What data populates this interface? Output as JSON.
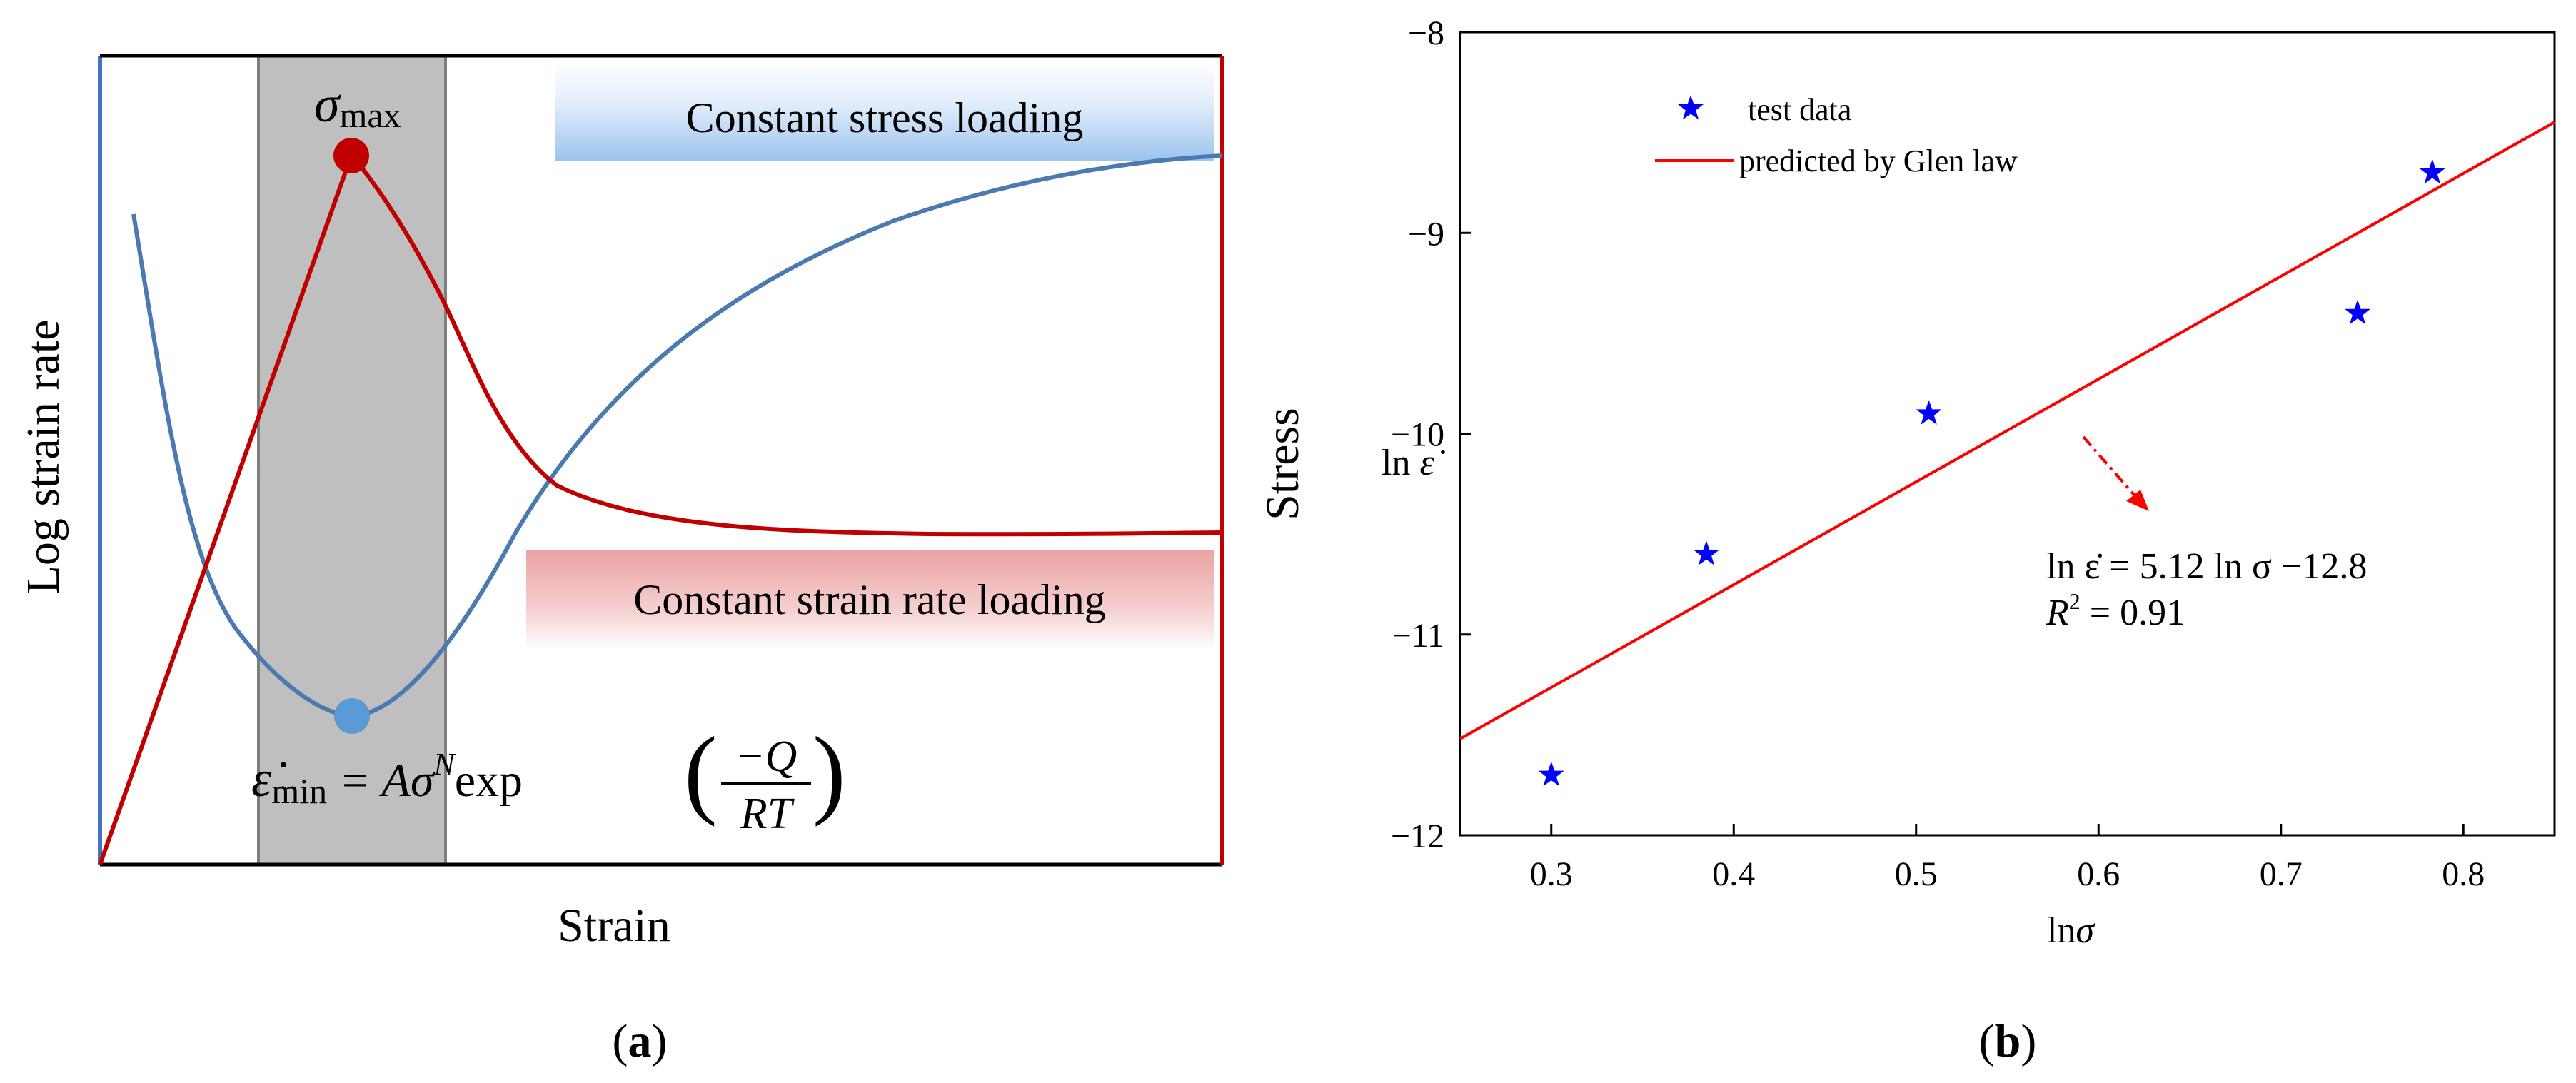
{
  "panel_a": {
    "caption": "a",
    "xlabel": "Strain",
    "ylabel_left": "Log strain rate",
    "ylabel_right": "Stress",
    "label_stress_loading": "Constant stress loading",
    "label_strain_rate_loading": "Constant strain rate loading",
    "sigma_symbol": "σ",
    "sigma_subscript": "max",
    "eps_symbol": "ε̇",
    "eps_subscript": "min",
    "eq_lhs_tail": " = Aσ",
    "eq_exponent": "N",
    "eq_exp": "exp",
    "eq_numerator": "−Q",
    "eq_denominator": "RT",
    "colors": {
      "stress_curve": "#c00000",
      "strain_rate_curve": "#4a7ab0",
      "left_axis": "#4472c4",
      "right_axis": "#c00000",
      "band": "#bfbfbf",
      "max_marker": "#c00000",
      "min_marker": "#5b9bd5"
    }
  },
  "panel_b": {
    "caption": "b",
    "legend_test_data": "test data",
    "legend_fit": "predicted by Glen law",
    "ylabel_prefix": "ln ",
    "ylabel_var": "ε̇",
    "xlabel_prefix": "ln",
    "xlabel_var": "σ",
    "eq_line1": "ln ε̇ = 5.12 ln σ −12.8",
    "eq_line2_prefix": "R",
    "eq_line2_exp": "2",
    "eq_line2_suffix": " = 0.91"
  },
  "chart_data": [
    {
      "type": "line",
      "title": "",
      "xlabel": "Strain",
      "ylabel": "Log strain rate",
      "ylabel_secondary": "Stress",
      "series": [
        {
          "name": "Stress (constant strain rate loading)",
          "shape": "rises linearly to a peak (σmax), drops, then plateaus",
          "color": "#c00000"
        },
        {
          "name": "Log strain rate (constant stress loading)",
          "shape": "decreases to a minimum (ε̇min), then rises and saturates",
          "color": "#4a7ab0"
        }
      ],
      "annotations": [
        "σmax",
        "ε̇min = Aσ^N exp(−Q/RT)",
        "Constant stress loading",
        "Constant strain rate loading"
      ]
    },
    {
      "type": "scatter",
      "title": "",
      "xlabel": "lnσ",
      "ylabel": "ln ε̇",
      "xlim": [
        0.25,
        0.85
      ],
      "ylim": [
        -12,
        -8
      ],
      "xticks": [
        0.3,
        0.4,
        0.5,
        0.6,
        0.7,
        0.8
      ],
      "yticks": [
        -12,
        -11,
        -10,
        -9,
        -8
      ],
      "series": [
        {
          "name": "test data",
          "kind": "scatter",
          "marker": "star",
          "color": "#0000ff",
          "x": [
            0.3,
            0.385,
            0.507,
            0.742,
            0.783
          ],
          "y": [
            -11.7,
            -10.6,
            -9.9,
            -9.4,
            -8.7
          ]
        },
        {
          "name": "predicted by Glen law",
          "kind": "line",
          "color": "#ff0000",
          "slope": 5.12,
          "intercept": -12.8,
          "x_range": [
            0.25,
            0.85
          ]
        }
      ],
      "r_squared": 0.91,
      "legend": "top-left"
    }
  ]
}
